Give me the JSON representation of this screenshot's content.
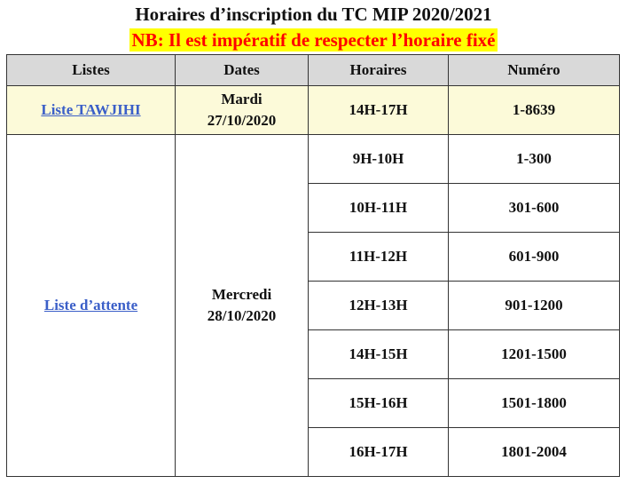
{
  "title": "Horaires d’inscription du TC MIP 2020/2021",
  "nb": "NB: Il est impératif de respecter l’horaire fixé",
  "table": {
    "headers": [
      "Listes",
      "Dates",
      "Horaires",
      "Numéro"
    ],
    "tawjihi": {
      "list_label": "Liste TAWJIHI",
      "day": "Mardi",
      "date": "27/10/2020",
      "time": "14H-17H",
      "range": "1-8639"
    },
    "attente": {
      "list_label": "Liste d’attente",
      "day": "Mercredi",
      "date": "28/10/2020",
      "slots": [
        {
          "time": "9H-10H",
          "range": "1-300"
        },
        {
          "time": "10H-11H",
          "range": "301-600"
        },
        {
          "time": "11H-12H",
          "range": "601-900"
        },
        {
          "time": "12H-13H",
          "range": "901-1200"
        },
        {
          "time": "14H-15H",
          "range": "1201-1500"
        },
        {
          "time": "15H-16H",
          "range": "1501-1800"
        },
        {
          "time": "16H-17H",
          "range": "1801-2004"
        }
      ]
    }
  },
  "colors": {
    "nb_text": "#ff0000",
    "nb_highlight": "#ffff00",
    "header_bg": "#d9d9d9",
    "tawjihi_row_bg": "#fcfad9",
    "link": "#3b5fc8"
  }
}
